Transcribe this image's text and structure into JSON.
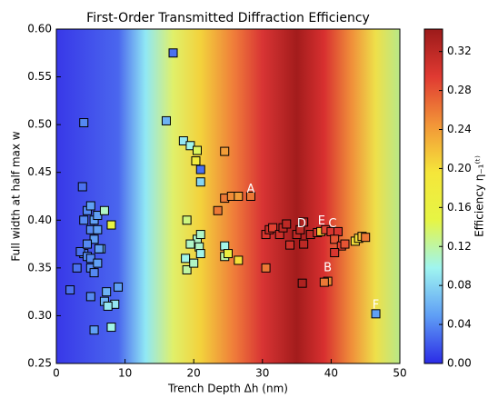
{
  "chart_data": {
    "type": "scatter",
    "title": "First-Order Transmitted Diffraction Efficiency",
    "x_label": "Trench Depth Δh (nm)",
    "y_label": "Full width at half max w",
    "xlim": [
      0,
      50
    ],
    "xticks": [
      0,
      10,
      20,
      30,
      40,
      50
    ],
    "ylim": [
      0.25,
      0.6
    ],
    "yticks": [
      0.25,
      {
        "value": 0.3,
        "label": "0.30"
      },
      0.35,
      {
        "value": 0.4,
        "label": "0.40"
      },
      0.45,
      {
        "value": 0.5,
        "label": "0.50"
      },
      0.55,
      {
        "value": 0.6,
        "label": "0.60"
      }
    ],
    "x": [
      4,
      3.8,
      2,
      3,
      4,
      3.5,
      4.5,
      5,
      4,
      4.5,
      5,
      5.5,
      6,
      5,
      6,
      5.5,
      6.5,
      7,
      5,
      5.5,
      6,
      5,
      7,
      7.3,
      8.5,
      9,
      5.5,
      7.5,
      8,
      8,
      4.5,
      6.2,
      17,
      16,
      18.5,
      19.5,
      20.5,
      20.3,
      21,
      21,
      24.5,
      23.5,
      24.5,
      25.5,
      26.5,
      28.3,
      19,
      20.5,
      21,
      20.8,
      19.5,
      21,
      18.8,
      19,
      20,
      24.5,
      24.5,
      25,
      26.5,
      30.5,
      30.5,
      31,
      31.5,
      32.5,
      33,
      33.5,
      34,
      35,
      35.5,
      36,
      35.8,
      36,
      37,
      38,
      38.5,
      39.2,
      40,
      41,
      40.5,
      41.5,
      42,
      40.5,
      39.5,
      39,
      43.5,
      44,
      44.5,
      45,
      46.5
    ],
    "values": [
      0.502,
      0.435,
      0.327,
      0.35,
      0.365,
      0.367,
      0.362,
      0.36,
      0.4,
      0.41,
      0.415,
      0.4,
      0.405,
      0.39,
      0.39,
      0.38,
      0.37,
      0.41,
      0.35,
      0.345,
      0.355,
      0.32,
      0.315,
      0.325,
      0.312,
      0.33,
      0.285,
      0.31,
      0.288,
      0.395,
      0.375,
      0.37,
      0.575,
      0.504,
      0.483,
      0.478,
      0.473,
      0.462,
      0.453,
      0.44,
      0.472,
      0.41,
      0.423,
      0.425,
      0.425,
      0.425,
      0.4,
      0.38,
      0.385,
      0.372,
      0.375,
      0.365,
      0.36,
      0.348,
      0.355,
      0.373,
      0.362,
      0.365,
      0.358,
      0.35,
      0.385,
      0.39,
      0.392,
      0.385,
      0.392,
      0.396,
      0.374,
      0.385,
      0.39,
      0.375,
      0.334,
      0.398,
      0.385,
      0.387,
      0.388,
      0.39,
      0.388,
      0.388,
      0.38,
      0.373,
      0.375,
      0.366,
      0.336,
      0.335,
      0.378,
      0.381,
      0.383,
      0.382,
      0.302
    ],
    "efficiency": [
      0.04,
      0.03,
      0.03,
      0.03,
      0.03,
      0.03,
      0.04,
      0.04,
      0.04,
      0.04,
      0.05,
      0.05,
      0.05,
      0.04,
      0.05,
      0.05,
      0.06,
      0.11,
      0.04,
      0.04,
      0.05,
      0.04,
      0.06,
      0.06,
      0.09,
      0.05,
      0.05,
      0.09,
      0.1,
      0.15,
      0.04,
      0.05,
      0.03,
      0.06,
      0.09,
      0.1,
      0.14,
      0.18,
      0.03,
      0.08,
      0.24,
      0.26,
      0.26,
      0.25,
      0.24,
      0.26,
      0.13,
      0.11,
      0.11,
      0.11,
      0.11,
      0.1,
      0.1,
      0.12,
      0.11,
      0.1,
      0.12,
      0.17,
      0.2,
      0.26,
      0.3,
      0.31,
      0.29,
      0.31,
      0.32,
      0.32,
      0.31,
      0.32,
      0.32,
      0.32,
      0.33,
      0.33,
      0.32,
      0.3,
      0.22,
      0.29,
      0.3,
      0.3,
      0.28,
      0.29,
      0.28,
      0.3,
      0.25,
      0.26,
      0.2,
      0.2,
      0.22,
      0.26,
      0.05
    ],
    "annotations": [
      {
        "text": "A",
        "x": 28.3,
        "y": 0.432
      },
      {
        "text": "B",
        "x": 39.5,
        "y": 0.35
      },
      {
        "text": "C",
        "x": 40.2,
        "y": 0.396
      },
      {
        "text": "D",
        "x": 35.7,
        "y": 0.396
      },
      {
        "text": "E",
        "x": 38.6,
        "y": 0.399
      },
      {
        "text": "F",
        "x": 46.5,
        "y": 0.311
      }
    ],
    "colorbar": {
      "label": "Efficiency η₋₁⁽ᵗ⁾",
      "lim": [
        0,
        0.343
      ],
      "ticks": [
        {
          "value": 0,
          "label": "0.00"
        },
        0.04,
        0.08,
        0.12,
        0.16,
        {
          "value": 0.2,
          "label": "0.20"
        },
        0.24,
        0.28,
        0.32
      ],
      "colors": [
        "#2b2be6",
        "#5f9ef5",
        "#9ff5f0",
        "#e6f545",
        "#f5e63a",
        "#f29538",
        "#e03a32",
        "#9c1a1a"
      ]
    }
  }
}
